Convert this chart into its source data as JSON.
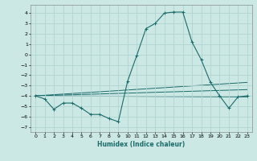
{
  "xlabel": "Humidex (Indice chaleur)",
  "xlim": [
    -0.5,
    23.5
  ],
  "ylim": [
    -7.5,
    4.8
  ],
  "yticks": [
    -7,
    -6,
    -5,
    -4,
    -3,
    -2,
    -1,
    0,
    1,
    2,
    3,
    4
  ],
  "xticks": [
    0,
    1,
    2,
    3,
    4,
    5,
    6,
    7,
    8,
    9,
    10,
    11,
    12,
    13,
    14,
    15,
    16,
    17,
    18,
    19,
    20,
    21,
    22,
    23
  ],
  "bg_color": "#cce8e4",
  "grid_color": "#b0d4d0",
  "line_color": "#1a6b6b",
  "series_main": {
    "x": [
      0,
      1,
      2,
      3,
      4,
      5,
      6,
      7,
      8,
      9,
      10,
      11,
      12,
      13,
      14,
      15,
      16,
      17,
      18,
      19,
      20,
      21,
      22,
      23
    ],
    "y": [
      -4.0,
      -4.3,
      -5.3,
      -4.7,
      -4.7,
      -5.2,
      -5.8,
      -5.8,
      -6.2,
      -6.5,
      -2.6,
      -0.1,
      2.5,
      3.0,
      4.0,
      4.1,
      4.1,
      1.2,
      -0.5,
      -2.7,
      -4.0,
      -5.2,
      -4.1,
      -4.0
    ]
  },
  "trend_lines": [
    {
      "x": [
        0,
        23
      ],
      "y": [
        -4.0,
        -2.7
      ]
    },
    {
      "x": [
        0,
        23
      ],
      "y": [
        -4.0,
        -3.4
      ]
    },
    {
      "x": [
        0,
        23
      ],
      "y": [
        -4.0,
        -4.1
      ]
    }
  ]
}
